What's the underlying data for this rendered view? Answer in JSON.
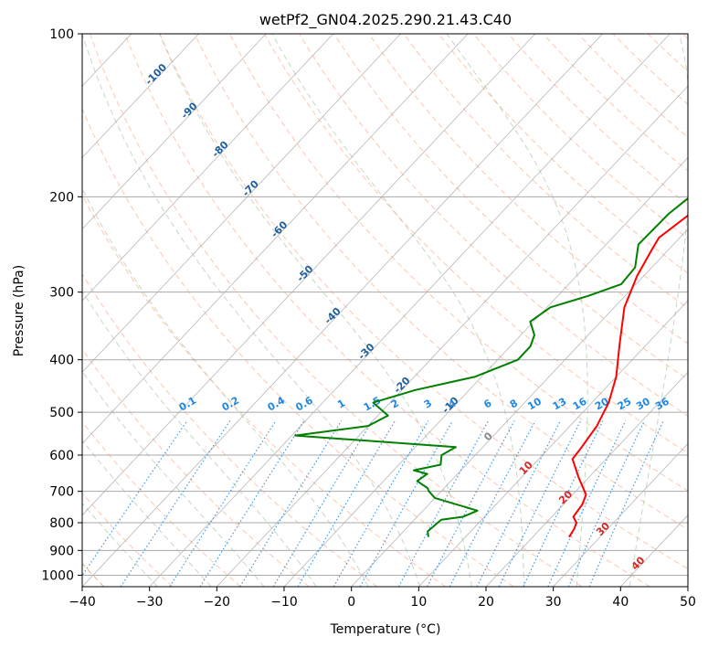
{
  "chart_data": {
    "type": "line",
    "title": "wetPf2_GN04.2025.290.21.43.C40",
    "xlabel": "Temperature (°C)",
    "ylabel": "Pressure (hPa)",
    "xlim": [
      -40,
      50
    ],
    "ylim": [
      1050,
      100
    ],
    "x_ticks": [
      -40,
      -30,
      -20,
      -10,
      0,
      10,
      20,
      30,
      40,
      50
    ],
    "y_ticks": [
      100,
      200,
      300,
      400,
      500,
      600,
      700,
      800,
      900,
      1000
    ],
    "skew_degC_per_log10": 75.7,
    "series": [
      {
        "name": "Temperature",
        "color": "#ff0000",
        "points": [
          [
            25.4,
            850
          ],
          [
            25,
            820
          ],
          [
            24.5,
            800
          ],
          [
            23.2,
            780
          ],
          [
            22.8,
            740
          ],
          [
            22,
            710
          ],
          [
            18.5,
            660
          ],
          [
            15,
            610
          ],
          [
            14.7,
            580
          ],
          [
            14,
            530
          ],
          [
            12.5,
            480
          ],
          [
            10,
            430
          ],
          [
            6,
            375
          ],
          [
            1.5,
            320
          ],
          [
            -1,
            280
          ],
          [
            -2.5,
            250
          ],
          [
            -3.1,
            238
          ],
          [
            -1.8,
            215
          ],
          [
            0.5,
            198
          ],
          [
            2.5,
            180
          ],
          [
            2.6,
            170
          ],
          [
            1.8,
            155
          ],
          [
            2.5,
            138
          ],
          [
            5,
            125
          ],
          [
            8,
            117
          ],
          [
            11,
            109
          ],
          [
            13.5,
            103
          ],
          [
            14.5,
            100
          ]
        ]
      },
      {
        "name": "Dew point",
        "color": "#008000",
        "points": [
          [
            4.5,
            850
          ],
          [
            3.6,
            830
          ],
          [
            4,
            790
          ],
          [
            6.8,
            780
          ],
          [
            8.1,
            760
          ],
          [
            0,
            720
          ],
          [
            -1.8,
            700
          ],
          [
            -2.5,
            690
          ],
          [
            -5,
            670
          ],
          [
            -4.5,
            650
          ],
          [
            -7,
            640
          ],
          [
            -3.8,
            625
          ],
          [
            -5,
            600
          ],
          [
            -4,
            580
          ],
          [
            -29.5,
            552
          ],
          [
            -20,
            530
          ],
          [
            -18.5,
            507
          ],
          [
            -22.5,
            480
          ],
          [
            -18,
            455
          ],
          [
            -11,
            430
          ],
          [
            -7,
            400
          ],
          [
            -7,
            378
          ],
          [
            -8,
            360
          ],
          [
            -10.5,
            340
          ],
          [
            -9.5,
            320
          ],
          [
            -5.5,
            305
          ],
          [
            -2.2,
            290
          ],
          [
            -2.5,
            270
          ],
          [
            -5.2,
            245
          ],
          [
            -5,
            215
          ],
          [
            -4,
            196
          ],
          [
            -6,
            182
          ],
          [
            -6.5,
            165
          ],
          [
            -8,
            150
          ],
          [
            -8,
            136
          ],
          [
            -7,
            124
          ],
          [
            -3.5,
            110
          ],
          [
            1.5,
            100
          ]
        ]
      }
    ],
    "isotherm_labels": [
      -100,
      -90,
      -80,
      -70,
      -60,
      -50,
      -40,
      -30,
      -20,
      -10,
      0,
      10,
      20,
      30,
      40
    ],
    "mixing_ratio_labels": [
      "0.1",
      "0.2",
      "0.4",
      "0.6",
      "1",
      "1.5",
      "2",
      "3",
      "4",
      "6",
      "8",
      "10",
      "13",
      "16",
      "20",
      "25",
      "30",
      "36"
    ],
    "colors": {
      "temperature": "#ff0000",
      "dewpoint": "#008000",
      "isotherm_label": "#1f5f9f",
      "warm_isotherm_label": "#d62728",
      "mixing_ratio": "#1e88e5",
      "dry_adiabat": "#ffa07a",
      "moist_adiabat": "#8fbc8f",
      "grid": "#aaaaaa"
    }
  }
}
